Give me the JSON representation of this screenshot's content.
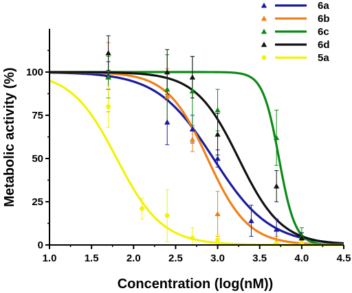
{
  "chart_data": {
    "type": "scatter",
    "xlabel": "Concentration (log(nM))",
    "ylabel": "Metabolic activity (%)",
    "xlim": [
      1.0,
      4.5
    ],
    "ylim": [
      0,
      125
    ],
    "x_ticks": [
      "1.0",
      "1.5",
      "2.0",
      "2.5",
      "3.0",
      "3.5",
      "4.0",
      "4.5"
    ],
    "y_ticks": [
      "0",
      "25",
      "50",
      "75",
      "100"
    ],
    "grid": false,
    "legend_position": "top-right",
    "series": [
      {
        "name": "6a",
        "color": "#1a1aa0",
        "marker": "triangle",
        "fit": {
          "top": 100,
          "bottom": 0,
          "logEC50": 2.95,
          "hill": 1.3
        },
        "points": [
          {
            "x": 1.7,
            "y": 98,
            "err": 8
          },
          {
            "x": 2.4,
            "y": 71,
            "err": 13
          },
          {
            "x": 2.7,
            "y": 67,
            "err": 8
          },
          {
            "x": 3.0,
            "y": 50,
            "err": 5
          },
          {
            "x": 3.4,
            "y": 14,
            "err": 9
          },
          {
            "x": 3.7,
            "y": 9,
            "err": 6
          },
          {
            "x": 4.0,
            "y": 4,
            "err": 3
          }
        ]
      },
      {
        "name": "6b",
        "color": "#f08018",
        "marker": "triangle",
        "fit": {
          "top": 100,
          "bottom": 0,
          "logEC50": 2.88,
          "hill": 1.8
        },
        "points": [
          {
            "x": 1.7,
            "y": 97,
            "err": 20
          },
          {
            "x": 2.4,
            "y": 86,
            "err": 16
          },
          {
            "x": 2.7,
            "y": 61,
            "err": 7
          },
          {
            "x": 3.0,
            "y": 18,
            "err": 13
          },
          {
            "x": 3.7,
            "y": 2,
            "err": 3
          },
          {
            "x": 4.0,
            "y": 2,
            "err": 2
          }
        ]
      },
      {
        "name": "6c",
        "color": "#0b8a17",
        "marker": "triangle",
        "fit": {
          "top": 100,
          "bottom": 0,
          "logEC50": 3.73,
          "hill": 4.5
        },
        "points": [
          {
            "x": 1.7,
            "y": 97,
            "err": 12
          },
          {
            "x": 2.4,
            "y": 90,
            "err": 20
          },
          {
            "x": 2.7,
            "y": 89,
            "err": 20
          },
          {
            "x": 3.0,
            "y": 78,
            "err": 12
          },
          {
            "x": 3.7,
            "y": 62,
            "err": 16
          },
          {
            "x": 4.0,
            "y": 5,
            "err": 5
          }
        ]
      },
      {
        "name": "6d",
        "color": "#111111",
        "marker": "triangle",
        "fit": {
          "top": 100,
          "bottom": 0,
          "logEC50": 3.25,
          "hill": 1.7
        },
        "points": [
          {
            "x": 1.7,
            "y": 111,
            "err": 10
          },
          {
            "x": 2.4,
            "y": 100,
            "err": 13
          },
          {
            "x": 2.7,
            "y": 97,
            "err": 12
          },
          {
            "x": 3.0,
            "y": 64,
            "err": 12
          },
          {
            "x": 3.7,
            "y": 34,
            "err": 9
          },
          {
            "x": 4.0,
            "y": 4,
            "err": 3
          }
        ]
      },
      {
        "name": "5a",
        "color": "#f2f20a",
        "marker": "circle",
        "fit": {
          "top": 100,
          "bottom": 0,
          "logEC50": 1.8,
          "hill": 1.6
        },
        "points": [
          {
            "x": 1.7,
            "y": 80,
            "err": 12
          },
          {
            "x": 2.1,
            "y": 21,
            "err": 6
          },
          {
            "x": 2.4,
            "y": 17,
            "err": 15
          },
          {
            "x": 2.7,
            "y": 4,
            "err": 6
          },
          {
            "x": 3.0,
            "y": 3,
            "err": 3
          },
          {
            "x": 3.7,
            "y": 1,
            "err": 2
          },
          {
            "x": 4.0,
            "y": 1,
            "err": 2
          }
        ]
      }
    ]
  }
}
